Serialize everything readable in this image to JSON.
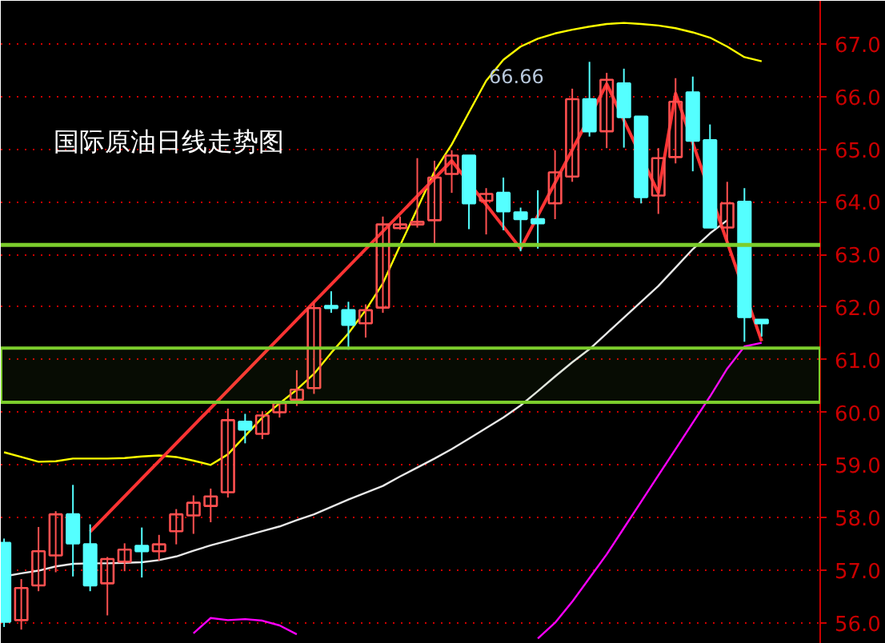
{
  "chart_data": {
    "type": "candlestick",
    "title": "国际原油日线走势图",
    "annotations": [
      "66.66"
    ],
    "categories": [
      null,
      null,
      null,
      null,
      null,
      null,
      null,
      null,
      null,
      null,
      null,
      null,
      null,
      null,
      null,
      null,
      null,
      null,
      null,
      null,
      null,
      null,
      null,
      null,
      null,
      null,
      null,
      null,
      null,
      null,
      null,
      null,
      null,
      null,
      null,
      null,
      null,
      null,
      null,
      null,
      null,
      null,
      null,
      null,
      null
    ],
    "ohlc": [
      [
        57.52,
        57.6,
        55.92,
        56.02
      ],
      [
        56.05,
        56.83,
        55.87,
        56.66
      ],
      [
        56.71,
        57.82,
        56.6,
        57.36
      ],
      [
        57.28,
        58.12,
        56.96,
        58.06
      ],
      [
        58.06,
        58.62,
        56.88,
        57.51
      ],
      [
        57.49,
        57.87,
        56.6,
        56.71
      ],
      [
        56.75,
        57.25,
        56.14,
        57.21
      ],
      [
        57.16,
        57.51,
        56.98,
        57.39
      ],
      [
        57.46,
        57.81,
        56.86,
        57.36
      ],
      [
        57.36,
        57.67,
        57.18,
        57.49
      ],
      [
        57.74,
        58.16,
        57.49,
        58.06
      ],
      [
        58.04,
        58.42,
        57.69,
        58.28
      ],
      [
        58.22,
        58.55,
        57.91,
        58.4
      ],
      [
        58.48,
        60.07,
        58.38,
        59.85
      ],
      [
        59.82,
        59.97,
        59.41,
        59.67
      ],
      [
        59.59,
        60.02,
        59.49,
        59.94
      ],
      [
        60.0,
        60.22,
        59.9,
        60.17
      ],
      [
        60.24,
        60.8,
        60.12,
        60.43
      ],
      [
        60.46,
        62.08,
        60.35,
        61.98
      ],
      [
        62.02,
        62.3,
        61.89,
        61.98
      ],
      [
        61.94,
        62.1,
        61.19,
        61.66
      ],
      [
        61.69,
        62.05,
        61.42,
        61.94
      ],
      [
        61.99,
        63.72,
        61.89,
        63.57
      ],
      [
        63.5,
        63.72,
        63.47,
        63.57
      ],
      [
        63.57,
        64.83,
        63.51,
        63.62
      ],
      [
        63.65,
        64.78,
        63.18,
        64.46
      ],
      [
        64.53,
        64.98,
        64.17,
        64.88
      ],
      [
        64.88,
        64.88,
        63.48,
        63.97
      ],
      [
        64.02,
        64.26,
        63.38,
        64.15
      ],
      [
        64.17,
        64.46,
        63.46,
        63.82
      ],
      [
        63.8,
        63.89,
        63.06,
        63.67
      ],
      [
        63.67,
        64.22,
        63.11,
        63.59
      ],
      [
        63.97,
        64.98,
        63.67,
        64.56
      ],
      [
        64.48,
        66.15,
        64.38,
        65.95
      ],
      [
        65.95,
        66.66,
        65.24,
        65.34
      ],
      [
        65.34,
        66.45,
        65.02,
        66.32
      ],
      [
        66.25,
        66.53,
        65.03,
        65.61
      ],
      [
        65.62,
        65.62,
        63.97,
        64.09
      ],
      [
        64.12,
        65.02,
        63.77,
        64.83
      ],
      [
        64.85,
        66.35,
        64.73,
        65.9
      ],
      [
        66.08,
        66.38,
        64.58,
        65.16
      ],
      [
        65.17,
        65.47,
        63.51,
        63.51
      ],
      [
        63.51,
        64.38,
        63.21,
        63.97
      ],
      [
        64.0,
        64.26,
        61.34,
        61.81
      ],
      [
        61.76,
        61.76,
        61.44,
        61.69
      ]
    ],
    "colors": [
      "#54ffff",
      "#ff5050",
      "#ff5050",
      "#ff5050",
      "#54ffff",
      "#54ffff",
      "#ff5050",
      "#ff5050",
      "#54ffff",
      "#ff5050",
      "#ff5050",
      "#ff5050",
      "#ff5050",
      "#ff5050",
      "#54ffff",
      "#ff5050",
      "#ff5050",
      "#ff5050",
      "#ff5050",
      "#54ffff",
      "#54ffff",
      "#ff5050",
      "#ff5050",
      "#ff5050",
      "#ff5050",
      "#ff5050",
      "#ff5050",
      "#54ffff",
      "#ff5050",
      "#54ffff",
      "#54ffff",
      "#54ffff",
      "#ff5050",
      "#ff5050",
      "#54ffff",
      "#ff5050",
      "#54ffff",
      "#54ffff",
      "#ff5050",
      "#ff5050",
      "#54ffff",
      "#54ffff",
      "#ff5050",
      "#54ffff",
      "#54ffff"
    ],
    "series": [
      {
        "type": "line",
        "color": "#ffff00",
        "values": [
          59.24,
          59.15,
          59.06,
          59.07,
          59.12,
          59.12,
          59.12,
          59.13,
          59.16,
          59.18,
          59.15,
          59.08,
          59.0,
          59.2,
          59.55,
          59.9,
          60.17,
          60.43,
          60.73,
          61.13,
          61.5,
          61.94,
          62.45,
          63.17,
          63.87,
          64.58,
          65.09,
          65.7,
          66.3,
          66.7,
          66.95,
          67.1,
          67.2,
          67.27,
          67.33,
          67.38,
          67.4,
          67.38,
          67.35,
          67.3,
          67.22,
          67.12,
          66.95,
          66.75,
          66.67
        ]
      },
      {
        "type": "line",
        "color": "#e8e8e8",
        "values": [
          56.88,
          56.94,
          56.99,
          57.07,
          57.12,
          57.13,
          57.13,
          57.14,
          57.15,
          57.19,
          57.26,
          57.37,
          57.47,
          57.56,
          57.65,
          57.74,
          57.83,
          57.95,
          58.06,
          58.2,
          58.34,
          58.47,
          58.6,
          58.78,
          58.95,
          59.12,
          59.3,
          59.5,
          59.7,
          59.9,
          60.13,
          60.4,
          60.68,
          60.95,
          61.2,
          61.5,
          61.8,
          62.1,
          62.4,
          62.75,
          63.1,
          63.4,
          63.65,
          null,
          null
        ]
      },
      {
        "type": "line",
        "color": "#ff00ff",
        "values": [
          null,
          null,
          null,
          null,
          null,
          null,
          null,
          null,
          null,
          null,
          null,
          55.8,
          56.09,
          56.05,
          56.07,
          56.04,
          55.95,
          55.78,
          null,
          null,
          null,
          null,
          null,
          null,
          null,
          null,
          null,
          null,
          null,
          null,
          null,
          55.7,
          56.0,
          56.4,
          56.85,
          57.3,
          57.8,
          58.3,
          58.8,
          59.3,
          59.8,
          60.3,
          60.83,
          61.25,
          61.32
        ]
      },
      {
        "type": "line",
        "color": "#ff3333",
        "values": [
          null,
          null,
          null,
          null,
          null,
          57.73,
          null,
          null,
          null,
          null,
          null,
          null,
          null,
          null,
          null,
          null,
          null,
          null,
          null,
          null,
          null,
          null,
          null,
          null,
          null,
          null,
          64.78,
          null,
          null,
          null,
          63.11,
          null,
          null,
          null,
          null,
          66.24,
          null,
          null,
          64.17,
          66.06,
          null,
          null,
          null,
          null,
          61.35
        ]
      }
    ],
    "ylim": [
      55.6,
      67.82
    ],
    "yticks": [
      {
        "value": 56,
        "label": "56.0"
      },
      {
        "value": 57,
        "label": "57.0"
      },
      {
        "value": 58,
        "label": "58.0"
      },
      {
        "value": 59,
        "label": "59.0"
      },
      {
        "value": 60,
        "label": "60.0"
      },
      {
        "value": 61,
        "label": "61.0"
      },
      {
        "value": 62,
        "label": "62.0"
      },
      {
        "value": 63,
        "label": "63.0"
      },
      {
        "value": 64,
        "label": "64.0"
      },
      {
        "value": 65,
        "label": "65.0"
      },
      {
        "value": 66,
        "label": "66.0"
      },
      {
        "value": 67,
        "label": "67.0"
      }
    ],
    "ref_lines": [
      {
        "axis": "y",
        "value": 63.18,
        "color": "#7ccd2c"
      }
    ],
    "bands": [
      {
        "axis": "y",
        "from": 60.19,
        "to": 61.22,
        "color": "#7ccd2c"
      }
    ],
    "grid": "y",
    "tick_labels": "y"
  }
}
